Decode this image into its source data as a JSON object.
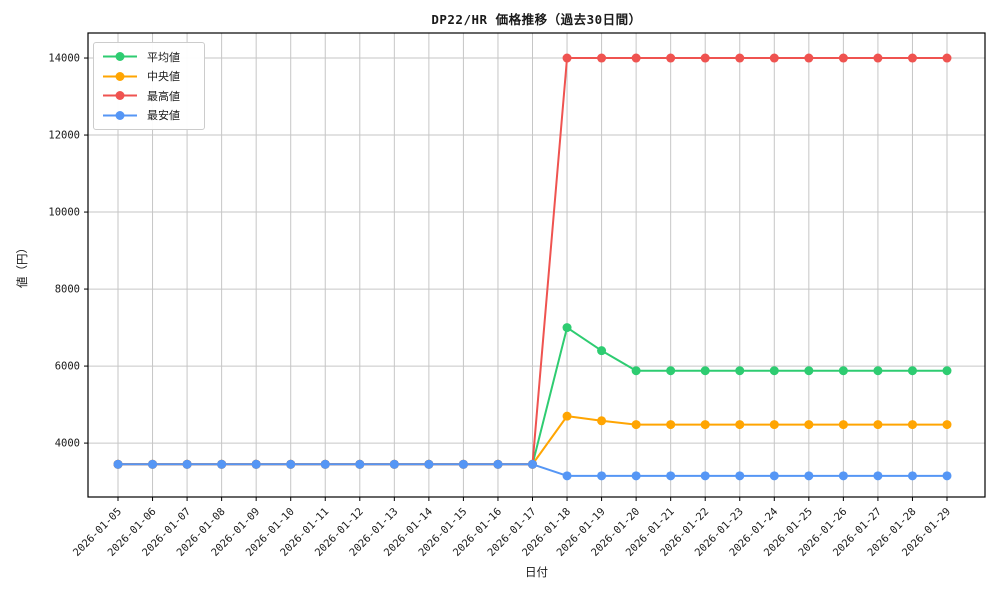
{
  "chart_data": {
    "type": "line",
    "title": "DP22/HR 価格推移（過去30日間）",
    "xlabel": "日付",
    "ylabel": "値（円）",
    "grid": true,
    "legend_position": "upper left",
    "x": [
      "2026-01-05",
      "2026-01-06",
      "2026-01-07",
      "2026-01-08",
      "2026-01-09",
      "2026-01-10",
      "2026-01-11",
      "2026-01-12",
      "2026-01-13",
      "2026-01-14",
      "2026-01-15",
      "2026-01-16",
      "2026-01-17",
      "2026-01-18",
      "2026-01-19",
      "2026-01-20",
      "2026-01-21",
      "2026-01-22",
      "2026-01-23",
      "2026-01-24",
      "2026-01-25",
      "2026-01-26",
      "2026-01-27",
      "2026-01-28",
      "2026-01-29"
    ],
    "yticks": [
      4000,
      6000,
      8000,
      10000,
      12000,
      14000
    ],
    "ylim": [
      2600,
      14650
    ],
    "series": [
      {
        "key": "mean",
        "name": "平均値",
        "color": "#2ecc71",
        "values": [
          3450,
          3450,
          3450,
          3450,
          3450,
          3450,
          3450,
          3450,
          3450,
          3450,
          3450,
          3450,
          3450,
          7000,
          6400,
          5880,
          5880,
          5880,
          5880,
          5880,
          5880,
          5880,
          5880,
          5880,
          5880
        ]
      },
      {
        "key": "median",
        "name": "中央値",
        "color": "#ffa502",
        "values": [
          3450,
          3450,
          3450,
          3450,
          3450,
          3450,
          3450,
          3450,
          3450,
          3450,
          3450,
          3450,
          3450,
          4700,
          4580,
          4480,
          4480,
          4480,
          4480,
          4480,
          4480,
          4480,
          4480,
          4480,
          4480
        ]
      },
      {
        "key": "max",
        "name": "最高値",
        "color": "#ef5350",
        "values": [
          3450,
          3450,
          3450,
          3450,
          3450,
          3450,
          3450,
          3450,
          3450,
          3450,
          3450,
          3450,
          3450,
          14000,
          14000,
          14000,
          14000,
          14000,
          14000,
          14000,
          14000,
          14000,
          14000,
          14000,
          14000
        ]
      },
      {
        "key": "min",
        "name": "最安値",
        "color": "#5596f5",
        "values": [
          3450,
          3450,
          3450,
          3450,
          3450,
          3450,
          3450,
          3450,
          3450,
          3450,
          3450,
          3450,
          3450,
          3150,
          3150,
          3150,
          3150,
          3150,
          3150,
          3150,
          3150,
          3150,
          3150,
          3150,
          3150
        ]
      }
    ]
  }
}
